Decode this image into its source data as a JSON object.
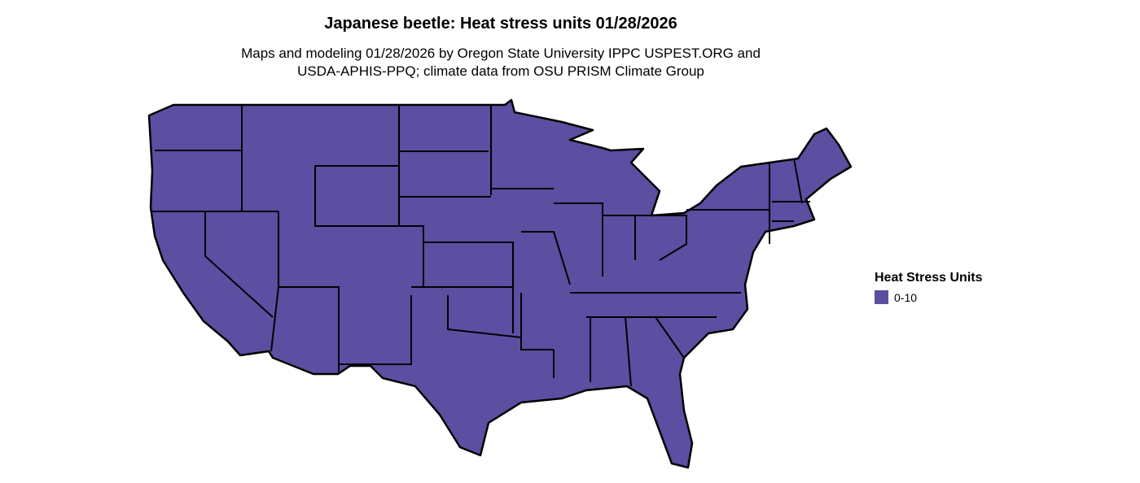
{
  "title": "Japanese beetle: Heat stress units 01/28/2026",
  "subtitle_line1": "Maps and modeling 01/28/2026 by Oregon State University IPPC USPEST.ORG and",
  "subtitle_line2": "USDA-APHIS-PPQ; climate data from OSU PRISM Climate Group",
  "legend": {
    "title": "Heat Stress Units",
    "items": [
      {
        "label": "0-10",
        "color": "#5c4ea1"
      }
    ]
  },
  "map": {
    "region": "Contiguous United States",
    "fill_color": "#5c4ea1",
    "border_color": "#000000",
    "category": "0-10"
  }
}
